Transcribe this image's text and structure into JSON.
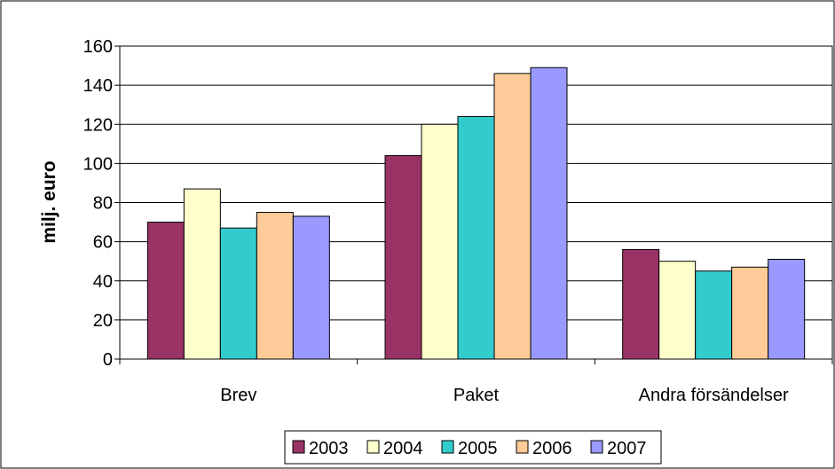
{
  "chart_data": {
    "type": "bar",
    "categories": [
      "Brev",
      "Paket",
      "Andra försändelser"
    ],
    "series": [
      {
        "name": "2003",
        "color": "#993366",
        "values": [
          70,
          104,
          56
        ]
      },
      {
        "name": "2004",
        "color": "#FFFFCC",
        "values": [
          87,
          120,
          50
        ]
      },
      {
        "name": "2005",
        "color": "#33CCCC",
        "values": [
          67,
          124,
          45
        ]
      },
      {
        "name": "2006",
        "color": "#FFCC99",
        "values": [
          75,
          146,
          47
        ]
      },
      {
        "name": "2007",
        "color": "#9999FF",
        "values": [
          73,
          149,
          51
        ]
      }
    ],
    "title": "",
    "xlabel": "",
    "ylabel": "milj. euro",
    "ylim": [
      0,
      160
    ],
    "yticks": [
      "0",
      "20",
      "40",
      "60",
      "80",
      "100",
      "120",
      "140",
      "160"
    ],
    "grid": true,
    "legend_position": "bottom"
  }
}
